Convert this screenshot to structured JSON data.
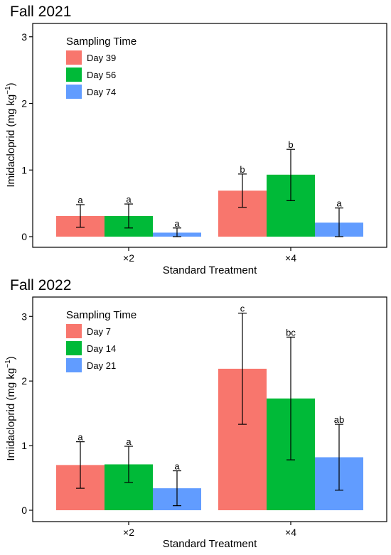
{
  "colors": {
    "series1": "#F8766D",
    "series2": "#00BA38",
    "series3": "#619CFF"
  },
  "chart_data": [
    {
      "type": "bar",
      "title": "Fall 2021",
      "xlabel": "Standard Treatment",
      "ylabel": "Imidacloprid (mg kg",
      "ylabel_sup": "−1",
      "ylabel_end": ")",
      "ylim": [
        0,
        3.2
      ],
      "yticks": [
        0,
        1,
        2,
        3
      ],
      "yticklabels": [
        "0",
        "1",
        "2",
        "3"
      ],
      "grid": false,
      "legend_position": "top-left",
      "legend_title": "Sampling Time",
      "categories": [
        "×2",
        "×4"
      ],
      "series": [
        {
          "name": "Day 39",
          "values": [
            0.31,
            0.69
          ],
          "err_low": [
            0.14,
            0.44
          ],
          "err_high": [
            0.48,
            0.94
          ],
          "labels": [
            "a",
            "b"
          ]
        },
        {
          "name": "Day 56",
          "values": [
            0.31,
            0.93
          ],
          "err_low": [
            0.13,
            0.54
          ],
          "err_high": [
            0.49,
            1.31
          ],
          "labels": [
            "a",
            "b"
          ]
        },
        {
          "name": "Day 74",
          "values": [
            0.06,
            0.21
          ],
          "err_low": [
            0.0,
            0.0
          ],
          "err_high": [
            0.13,
            0.43
          ],
          "labels": [
            "a",
            "a"
          ]
        }
      ]
    },
    {
      "type": "bar",
      "title": "Fall 2022",
      "xlabel": "Standard Treatment",
      "ylabel": "Imidacloprid (mg kg",
      "ylabel_sup": "−1",
      "ylabel_end": ")",
      "ylim": [
        0,
        3.3
      ],
      "yticks": [
        0,
        1,
        2,
        3
      ],
      "yticklabels": [
        "0",
        "1",
        "2",
        "3"
      ],
      "grid": false,
      "legend_position": "top-left",
      "legend_title": "Sampling Time",
      "categories": [
        "×2",
        "×4"
      ],
      "series": [
        {
          "name": "Day 7",
          "values": [
            0.7,
            2.19
          ],
          "err_low": [
            0.34,
            1.33
          ],
          "err_high": [
            1.06,
            3.05
          ],
          "labels": [
            "a",
            "c"
          ]
        },
        {
          "name": "Day 14",
          "values": [
            0.71,
            1.73
          ],
          "err_low": [
            0.43,
            0.78
          ],
          "err_high": [
            0.99,
            2.68
          ],
          "labels": [
            "a",
            "bc"
          ]
        },
        {
          "name": "Day 21",
          "values": [
            0.34,
            0.82
          ],
          "err_low": [
            0.07,
            0.31
          ],
          "err_high": [
            0.61,
            1.33
          ],
          "labels": [
            "a",
            "ab"
          ]
        }
      ]
    }
  ]
}
